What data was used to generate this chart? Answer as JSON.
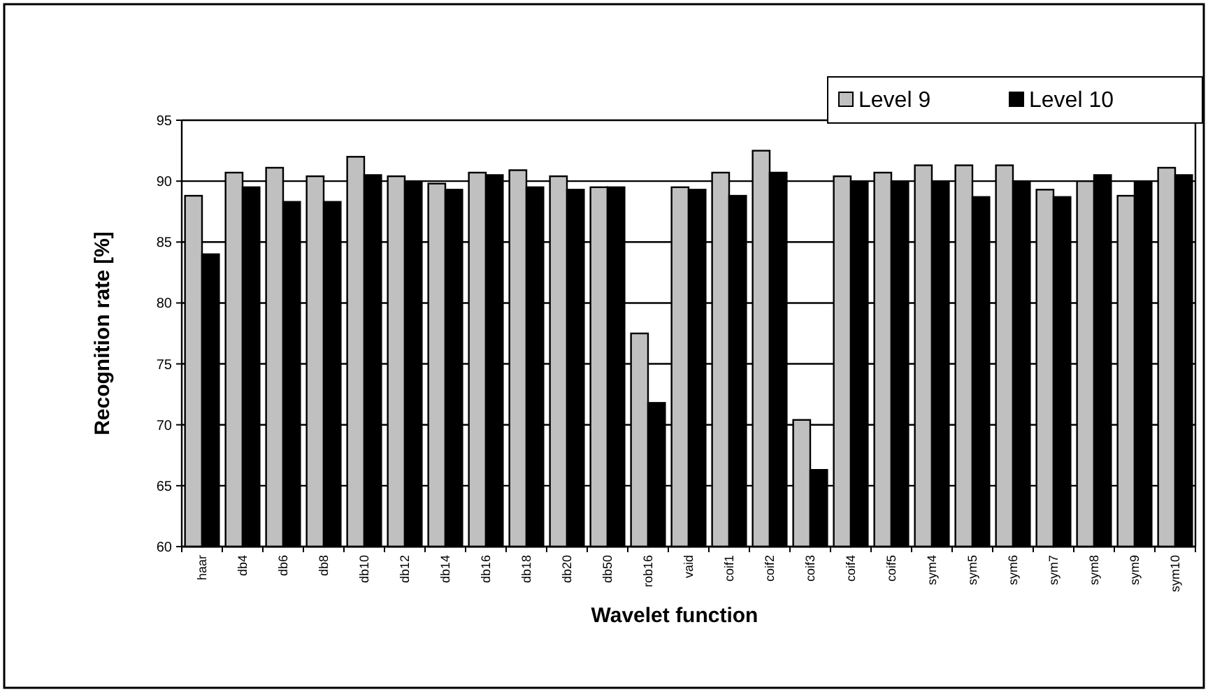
{
  "chart_data": {
    "type": "bar",
    "xlabel": "Wavelet function",
    "ylabel": "Recognition rate [%]",
    "categories": [
      "haar",
      "db4",
      "db6",
      "db8",
      "db10",
      "db12",
      "db14",
      "db16",
      "db18",
      "db20",
      "db50",
      "rob16",
      "vaid",
      "coif1",
      "coif2",
      "coif3",
      "coif4",
      "coif5",
      "sym4",
      "sym5",
      "sym6",
      "sym7",
      "sym8",
      "sym9",
      "sym10"
    ],
    "series": [
      {
        "name": "Level 9",
        "color": "#c0c0c0",
        "values": [
          88.8,
          90.7,
          91.1,
          90.4,
          92,
          90.4,
          89.8,
          90.7,
          90.9,
          90.4,
          89.5,
          77.5,
          89.5,
          90.7,
          92.5,
          70.4,
          90.4,
          90.7,
          91.3,
          91.3,
          91.3,
          89.3,
          90,
          88.8,
          91.1
        ]
      },
      {
        "name": "Level 10",
        "color": "#000000",
        "values": [
          84,
          89.5,
          88.3,
          88.3,
          90.5,
          90,
          89.3,
          90.5,
          89.5,
          89.3,
          89.5,
          71.8,
          89.3,
          88.8,
          90.7,
          66.3,
          90,
          90,
          90,
          88.7,
          90,
          88.7,
          90.5,
          90,
          90.5
        ]
      }
    ],
    "ylim": [
      60,
      95
    ],
    "yticks": [
      60,
      65,
      70,
      75,
      80,
      85,
      90,
      95
    ],
    "grid": "y",
    "legend": "top right"
  }
}
